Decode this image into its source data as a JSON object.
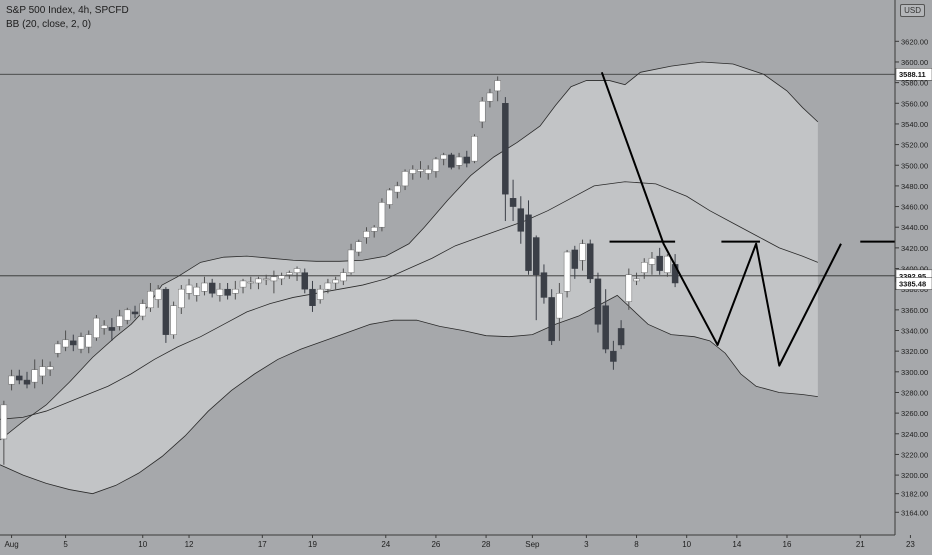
{
  "header": {
    "symbol_line": "S&P 500 Index, 4h, SPCFD",
    "indicator_line": "BB (20, close, 2, 0)",
    "currency_badge": "USD"
  },
  "colors": {
    "background": "#a6a8ab",
    "band_fill": "#c2c4c6",
    "band_line": "#2a2a2a",
    "up_candle": "#ffffff",
    "down_candle": "#3b3f47",
    "pattern_line": "#000000",
    "price_tag_bg": "#ffffff"
  },
  "chart_data": {
    "type": "candlestick",
    "title": "S&P 500 Index, 4h, SPCFD",
    "indicator": "BB (20, close, 2, 0)",
    "xlabel": "",
    "ylabel": "",
    "ylim": [
      3142,
      3660
    ],
    "y_ticks": [
      3164,
      3182,
      3200,
      3220,
      3240,
      3260,
      3280,
      3300,
      3320,
      3340,
      3360,
      3380,
      3400,
      3420,
      3440,
      3460,
      3480,
      3500,
      3520,
      3540,
      3560,
      3580,
      3600,
      3620
    ],
    "y_tick_labels": [
      "3164.00",
      "3182.00",
      "3200.00",
      "3220.00",
      "3240.00",
      "3260.00",
      "3280.00",
      "3300.00",
      "3320.00",
      "3340.00",
      "3360.00",
      "3380.00",
      "3400.00",
      "3420.00",
      "3440.00",
      "3460.00",
      "3480.00",
      "3500.00",
      "3520.00",
      "3540.00",
      "3560.00",
      "3580.00",
      "3600.00",
      "3620.00"
    ],
    "x_range": [
      0,
      116
    ],
    "x_ticks": [
      {
        "label": "Aug",
        "x": 1.5
      },
      {
        "label": "5",
        "x": 8.5
      },
      {
        "label": "10",
        "x": 18.5
      },
      {
        "label": "12",
        "x": 24.5
      },
      {
        "label": "17",
        "x": 34
      },
      {
        "label": "19",
        "x": 40.5
      },
      {
        "label": "24",
        "x": 50
      },
      {
        "label": "26",
        "x": 56.5
      },
      {
        "label": "28",
        "x": 63
      },
      {
        "label": "Sep",
        "x": 69
      },
      {
        "label": "3",
        "x": 76
      },
      {
        "label": "8",
        "x": 82.5
      },
      {
        "label": "10",
        "x": 89
      },
      {
        "label": "14",
        "x": 95.5
      },
      {
        "label": "16",
        "x": 102
      },
      {
        "label": "21",
        "x": 111.5
      },
      {
        "label": "23",
        "x": 118
      }
    ],
    "candles": [
      {
        "o": 3235,
        "h": 3272,
        "l": 3210,
        "c": 3268
      },
      {
        "o": 3288,
        "h": 3302,
        "l": 3282,
        "c": 3296
      },
      {
        "o": 3296,
        "h": 3302,
        "l": 3288,
        "c": 3292
      },
      {
        "o": 3292,
        "h": 3300,
        "l": 3284,
        "c": 3288
      },
      {
        "o": 3290,
        "h": 3312,
        "l": 3284,
        "c": 3302
      },
      {
        "o": 3296,
        "h": 3312,
        "l": 3288,
        "c": 3305
      },
      {
        "o": 3302,
        "h": 3310,
        "l": 3296,
        "c": 3305
      },
      {
        "o": 3318,
        "h": 3330,
        "l": 3314,
        "c": 3327
      },
      {
        "o": 3324,
        "h": 3340,
        "l": 3320,
        "c": 3331
      },
      {
        "o": 3330,
        "h": 3336,
        "l": 3320,
        "c": 3326
      },
      {
        "o": 3322,
        "h": 3338,
        "l": 3318,
        "c": 3334
      },
      {
        "o": 3324,
        "h": 3340,
        "l": 3318,
        "c": 3336
      },
      {
        "o": 3333,
        "h": 3355,
        "l": 3330,
        "c": 3352
      },
      {
        "o": 3342,
        "h": 3350,
        "l": 3336,
        "c": 3345
      },
      {
        "o": 3343,
        "h": 3352,
        "l": 3330,
        "c": 3340
      },
      {
        "o": 3344,
        "h": 3360,
        "l": 3340,
        "c": 3354
      },
      {
        "o": 3350,
        "h": 3362,
        "l": 3346,
        "c": 3360
      },
      {
        "o": 3358,
        "h": 3364,
        "l": 3352,
        "c": 3356
      },
      {
        "o": 3354,
        "h": 3370,
        "l": 3350,
        "c": 3366
      },
      {
        "o": 3362,
        "h": 3386,
        "l": 3358,
        "c": 3378
      },
      {
        "o": 3370,
        "h": 3384,
        "l": 3362,
        "c": 3380
      },
      {
        "o": 3380,
        "h": 3382,
        "l": 3328,
        "c": 3336
      },
      {
        "o": 3336,
        "h": 3368,
        "l": 3332,
        "c": 3364
      },
      {
        "o": 3362,
        "h": 3384,
        "l": 3356,
        "c": 3380
      },
      {
        "o": 3376,
        "h": 3390,
        "l": 3370,
        "c": 3384
      },
      {
        "o": 3374,
        "h": 3386,
        "l": 3368,
        "c": 3382
      },
      {
        "o": 3378,
        "h": 3392,
        "l": 3374,
        "c": 3386
      },
      {
        "o": 3386,
        "h": 3390,
        "l": 3372,
        "c": 3376
      },
      {
        "o": 3374,
        "h": 3386,
        "l": 3368,
        "c": 3380
      },
      {
        "o": 3380,
        "h": 3386,
        "l": 3370,
        "c": 3374
      },
      {
        "o": 3376,
        "h": 3388,
        "l": 3370,
        "c": 3380
      },
      {
        "o": 3382,
        "h": 3390,
        "l": 3376,
        "c": 3388
      },
      {
        "o": 3386,
        "h": 3392,
        "l": 3380,
        "c": 3387
      },
      {
        "o": 3386,
        "h": 3392,
        "l": 3380,
        "c": 3390
      },
      {
        "o": 3390,
        "h": 3394,
        "l": 3384,
        "c": 3390
      },
      {
        "o": 3388,
        "h": 3398,
        "l": 3376,
        "c": 3392
      },
      {
        "o": 3390,
        "h": 3396,
        "l": 3384,
        "c": 3393
      },
      {
        "o": 3394,
        "h": 3398,
        "l": 3390,
        "c": 3396
      },
      {
        "o": 3396,
        "h": 3402,
        "l": 3388,
        "c": 3400
      },
      {
        "o": 3396,
        "h": 3400,
        "l": 3376,
        "c": 3380
      },
      {
        "o": 3380,
        "h": 3388,
        "l": 3358,
        "c": 3364
      },
      {
        "o": 3370,
        "h": 3384,
        "l": 3366,
        "c": 3380
      },
      {
        "o": 3380,
        "h": 3390,
        "l": 3376,
        "c": 3386
      },
      {
        "o": 3386,
        "h": 3392,
        "l": 3380,
        "c": 3389
      },
      {
        "o": 3388,
        "h": 3400,
        "l": 3384,
        "c": 3396
      },
      {
        "o": 3396,
        "h": 3424,
        "l": 3394,
        "c": 3418
      },
      {
        "o": 3416,
        "h": 3428,
        "l": 3412,
        "c": 3426
      },
      {
        "o": 3430,
        "h": 3440,
        "l": 3424,
        "c": 3436
      },
      {
        "o": 3436,
        "h": 3442,
        "l": 3430,
        "c": 3440
      },
      {
        "o": 3440,
        "h": 3468,
        "l": 3436,
        "c": 3464
      },
      {
        "o": 3462,
        "h": 3478,
        "l": 3458,
        "c": 3476
      },
      {
        "o": 3474,
        "h": 3484,
        "l": 3468,
        "c": 3480
      },
      {
        "o": 3480,
        "h": 3496,
        "l": 3476,
        "c": 3494
      },
      {
        "o": 3492,
        "h": 3500,
        "l": 3486,
        "c": 3496
      },
      {
        "o": 3494,
        "h": 3504,
        "l": 3488,
        "c": 3496
      },
      {
        "o": 3492,
        "h": 3500,
        "l": 3486,
        "c": 3496
      },
      {
        "o": 3494,
        "h": 3508,
        "l": 3488,
        "c": 3506
      },
      {
        "o": 3506,
        "h": 3512,
        "l": 3500,
        "c": 3510
      },
      {
        "o": 3510,
        "h": 3512,
        "l": 3496,
        "c": 3498
      },
      {
        "o": 3500,
        "h": 3512,
        "l": 3496,
        "c": 3508
      },
      {
        "o": 3508,
        "h": 3514,
        "l": 3498,
        "c": 3502
      },
      {
        "o": 3504,
        "h": 3530,
        "l": 3502,
        "c": 3528
      },
      {
        "o": 3542,
        "h": 3566,
        "l": 3536,
        "c": 3562
      },
      {
        "o": 3562,
        "h": 3574,
        "l": 3556,
        "c": 3570
      },
      {
        "o": 3572,
        "h": 3586,
        "l": 3562,
        "c": 3582
      },
      {
        "o": 3560,
        "h": 3566,
        "l": 3446,
        "c": 3472
      },
      {
        "o": 3468,
        "h": 3486,
        "l": 3446,
        "c": 3460
      },
      {
        "o": 3458,
        "h": 3470,
        "l": 3424,
        "c": 3436
      },
      {
        "o": 3452,
        "h": 3466,
        "l": 3394,
        "c": 3398
      },
      {
        "o": 3430,
        "h": 3432,
        "l": 3350,
        "c": 3394
      },
      {
        "o": 3396,
        "h": 3404,
        "l": 3366,
        "c": 3372
      },
      {
        "o": 3372,
        "h": 3380,
        "l": 3326,
        "c": 3330
      },
      {
        "o": 3352,
        "h": 3386,
        "l": 3330,
        "c": 3376
      },
      {
        "o": 3378,
        "h": 3418,
        "l": 3372,
        "c": 3416
      },
      {
        "o": 3418,
        "h": 3422,
        "l": 3390,
        "c": 3400
      },
      {
        "o": 3408,
        "h": 3428,
        "l": 3398,
        "c": 3424
      },
      {
        "o": 3424,
        "h": 3428,
        "l": 3386,
        "c": 3390
      },
      {
        "o": 3390,
        "h": 3396,
        "l": 3338,
        "c": 3346
      },
      {
        "o": 3364,
        "h": 3380,
        "l": 3318,
        "c": 3322
      },
      {
        "o": 3320,
        "h": 3330,
        "l": 3302,
        "c": 3310
      },
      {
        "o": 3342,
        "h": 3350,
        "l": 3322,
        "c": 3326
      },
      {
        "o": 3368,
        "h": 3400,
        "l": 3360,
        "c": 3394
      },
      {
        "o": 3388,
        "h": 3396,
        "l": 3384,
        "c": 3390
      },
      {
        "o": 3396,
        "h": 3410,
        "l": 3390,
        "c": 3406
      },
      {
        "o": 3404,
        "h": 3416,
        "l": 3394,
        "c": 3410
      },
      {
        "o": 3412,
        "h": 3420,
        "l": 3394,
        "c": 3398
      },
      {
        "o": 3396,
        "h": 3414,
        "l": 3392,
        "c": 3412
      },
      {
        "o": 3404,
        "h": 3414,
        "l": 3382,
        "c": 3386
      }
    ],
    "upper_band": [
      {
        "x": 0,
        "y": 3234
      },
      {
        "x": 3,
        "y": 3252
      },
      {
        "x": 6,
        "y": 3268
      },
      {
        "x": 9,
        "y": 3290
      },
      {
        "x": 12,
        "y": 3314
      },
      {
        "x": 15,
        "y": 3334
      },
      {
        "x": 17,
        "y": 3346
      },
      {
        "x": 19,
        "y": 3362
      },
      {
        "x": 21,
        "y": 3384
      },
      {
        "x": 23,
        "y": 3392
      },
      {
        "x": 26,
        "y": 3406
      },
      {
        "x": 29,
        "y": 3411
      },
      {
        "x": 32,
        "y": 3412
      },
      {
        "x": 35,
        "y": 3410
      },
      {
        "x": 38,
        "y": 3408
      },
      {
        "x": 41,
        "y": 3407
      },
      {
        "x": 44,
        "y": 3407
      },
      {
        "x": 47,
        "y": 3408
      },
      {
        "x": 50,
        "y": 3412
      },
      {
        "x": 53,
        "y": 3424
      },
      {
        "x": 55,
        "y": 3440
      },
      {
        "x": 58,
        "y": 3466
      },
      {
        "x": 61,
        "y": 3490
      },
      {
        "x": 64,
        "y": 3508
      },
      {
        "x": 67,
        "y": 3522
      },
      {
        "x": 70,
        "y": 3538
      },
      {
        "x": 72,
        "y": 3558
      },
      {
        "x": 74,
        "y": 3576
      },
      {
        "x": 76,
        "y": 3582
      },
      {
        "x": 79,
        "y": 3582
      },
      {
        "x": 81,
        "y": 3578
      },
      {
        "x": 83,
        "y": 3590
      },
      {
        "x": 87,
        "y": 3596
      },
      {
        "x": 91,
        "y": 3600
      },
      {
        "x": 95,
        "y": 3598
      },
      {
        "x": 99,
        "y": 3588
      },
      {
        "x": 102,
        "y": 3572
      },
      {
        "x": 104,
        "y": 3556
      },
      {
        "x": 106,
        "y": 3542
      }
    ],
    "middle_band": [
      {
        "x": 0,
        "y": 3254
      },
      {
        "x": 3,
        "y": 3256
      },
      {
        "x": 6,
        "y": 3262
      },
      {
        "x": 10,
        "y": 3274
      },
      {
        "x": 14,
        "y": 3286
      },
      {
        "x": 17,
        "y": 3298
      },
      {
        "x": 20,
        "y": 3312
      },
      {
        "x": 23,
        "y": 3324
      },
      {
        "x": 26,
        "y": 3334
      },
      {
        "x": 29,
        "y": 3346
      },
      {
        "x": 32,
        "y": 3358
      },
      {
        "x": 35,
        "y": 3366
      },
      {
        "x": 38,
        "y": 3372
      },
      {
        "x": 41,
        "y": 3376
      },
      {
        "x": 44,
        "y": 3380
      },
      {
        "x": 47,
        "y": 3384
      },
      {
        "x": 50,
        "y": 3390
      },
      {
        "x": 53,
        "y": 3400
      },
      {
        "x": 56,
        "y": 3410
      },
      {
        "x": 59,
        "y": 3422
      },
      {
        "x": 62,
        "y": 3430
      },
      {
        "x": 65,
        "y": 3438
      },
      {
        "x": 68,
        "y": 3446
      },
      {
        "x": 71,
        "y": 3456
      },
      {
        "x": 74,
        "y": 3468
      },
      {
        "x": 77,
        "y": 3480
      },
      {
        "x": 81,
        "y": 3484
      },
      {
        "x": 85,
        "y": 3482
      },
      {
        "x": 89,
        "y": 3470
      },
      {
        "x": 92,
        "y": 3456
      },
      {
        "x": 95,
        "y": 3444
      },
      {
        "x": 98,
        "y": 3432
      },
      {
        "x": 101,
        "y": 3420
      },
      {
        "x": 104,
        "y": 3412
      },
      {
        "x": 106,
        "y": 3406
      }
    ],
    "lower_band": [
      {
        "x": 0,
        "y": 3210
      },
      {
        "x": 3,
        "y": 3200
      },
      {
        "x": 6,
        "y": 3192
      },
      {
        "x": 9,
        "y": 3186
      },
      {
        "x": 12,
        "y": 3182
      },
      {
        "x": 15,
        "y": 3190
      },
      {
        "x": 18,
        "y": 3202
      },
      {
        "x": 21,
        "y": 3218
      },
      {
        "x": 24,
        "y": 3238
      },
      {
        "x": 27,
        "y": 3262
      },
      {
        "x": 30,
        "y": 3282
      },
      {
        "x": 33,
        "y": 3298
      },
      {
        "x": 36,
        "y": 3312
      },
      {
        "x": 39,
        "y": 3322
      },
      {
        "x": 42,
        "y": 3330
      },
      {
        "x": 45,
        "y": 3338
      },
      {
        "x": 48,
        "y": 3346
      },
      {
        "x": 51,
        "y": 3350
      },
      {
        "x": 54,
        "y": 3350
      },
      {
        "x": 57,
        "y": 3344
      },
      {
        "x": 60,
        "y": 3340
      },
      {
        "x": 63,
        "y": 3335
      },
      {
        "x": 66,
        "y": 3334
      },
      {
        "x": 69,
        "y": 3336
      },
      {
        "x": 72,
        "y": 3346
      },
      {
        "x": 75,
        "y": 3354
      },
      {
        "x": 78,
        "y": 3366
      },
      {
        "x": 80,
        "y": 3374
      },
      {
        "x": 82,
        "y": 3360
      },
      {
        "x": 84,
        "y": 3346
      },
      {
        "x": 87,
        "y": 3336
      },
      {
        "x": 90,
        "y": 3334
      },
      {
        "x": 92,
        "y": 3330
      },
      {
        "x": 94,
        "y": 3318
      },
      {
        "x": 96,
        "y": 3298
      },
      {
        "x": 98,
        "y": 3286
      },
      {
        "x": 101,
        "y": 3280
      },
      {
        "x": 104,
        "y": 3278
      },
      {
        "x": 106,
        "y": 3276
      }
    ],
    "pattern_lines": [
      [
        {
          "x": 78,
          "y": 3590
        },
        {
          "x": 86,
          "y": 3424
        },
        {
          "x": 93,
          "y": 3326
        },
        {
          "x": 98,
          "y": 3424
        },
        {
          "x": 101,
          "y": 3306
        },
        {
          "x": 109,
          "y": 3424
        }
      ],
      [
        {
          "x": 79,
          "y": 3426
        },
        {
          "x": 87.5,
          "y": 3426
        }
      ],
      [
        {
          "x": 93.5,
          "y": 3426
        },
        {
          "x": 98.5,
          "y": 3426
        }
      ],
      [
        {
          "x": 111.5,
          "y": 3426
        },
        {
          "x": 117,
          "y": 3426
        }
      ]
    ],
    "horizontal_lines": [
      {
        "label": "3588.11",
        "value": 3588.11
      },
      {
        "label": "3392.95",
        "value": 3392.95
      }
    ],
    "price_labels": [
      {
        "label": "3588.11",
        "value": 3588.11
      },
      {
        "label": "3392.95",
        "value": 3392.95
      },
      {
        "label": "3385.48",
        "value": 3385.48
      }
    ]
  }
}
